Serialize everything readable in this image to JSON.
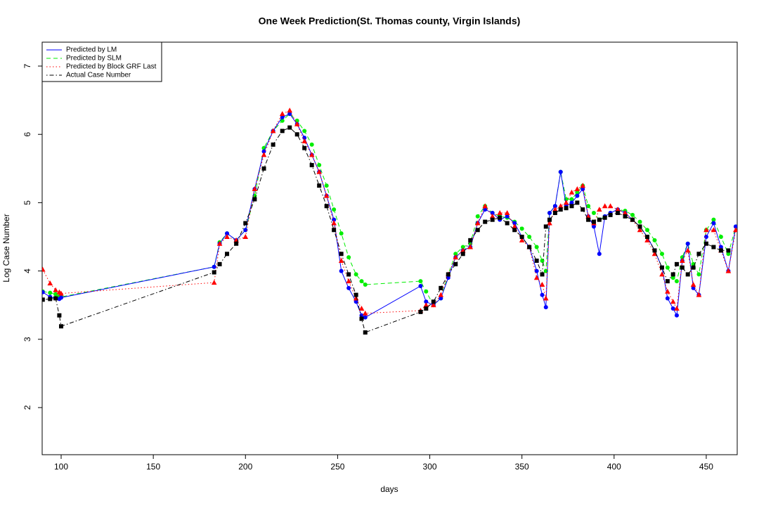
{
  "chart_data": {
    "type": "line",
    "title": "One Week Prediction(St. Thomas county, Virgin Islands)",
    "x_label": "days",
    "y_label": "Log Case Number",
    "xlim": [
      89.7,
      466.8
    ],
    "ylim": [
      1.31,
      7.35
    ],
    "xticks": [
      100,
      150,
      200,
      250,
      300,
      350,
      400,
      450
    ],
    "yticks": [
      2,
      3,
      4,
      5,
      6,
      7
    ],
    "legend": "top-left",
    "x": [
      90,
      94,
      97,
      99,
      100,
      183,
      186,
      190,
      195,
      200,
      205,
      210,
      215,
      220,
      224,
      228,
      232,
      236,
      240,
      244,
      248,
      252,
      256,
      260,
      263,
      265,
      295,
      298,
      302,
      306,
      310,
      314,
      318,
      322,
      326,
      330,
      334,
      338,
      342,
      346,
      350,
      354,
      358,
      361,
      363,
      365,
      368,
      371,
      374,
      377,
      380,
      383,
      386,
      389,
      392,
      395,
      398,
      402,
      406,
      410,
      414,
      418,
      422,
      426,
      429,
      432,
      434,
      437,
      440,
      443,
      446,
      450,
      454,
      458,
      462,
      466
    ],
    "series": [
      {
        "name": "Predicted by LM",
        "color": "#0000ff",
        "line_style": "solid",
        "marker": "circle",
        "values": [
          3.69,
          3.62,
          3.6,
          3.59,
          3.61,
          4.06,
          4.4,
          4.55,
          4.45,
          4.6,
          5.2,
          5.75,
          6.05,
          6.25,
          6.3,
          6.15,
          5.95,
          5.7,
          5.45,
          5.1,
          4.75,
          4.0,
          3.75,
          3.55,
          3.35,
          3.32,
          3.78,
          3.55,
          3.5,
          3.6,
          3.9,
          4.2,
          4.3,
          4.35,
          4.7,
          4.9,
          4.85,
          4.75,
          4.8,
          4.7,
          4.5,
          4.35,
          4.0,
          3.65,
          3.47,
          4.85,
          4.95,
          5.45,
          4.95,
          5.0,
          5.1,
          5.2,
          4.8,
          4.65,
          4.25,
          4.8,
          4.85,
          4.9,
          4.85,
          4.75,
          4.65,
          4.5,
          4.3,
          4.05,
          3.6,
          3.45,
          3.35,
          4.15,
          4.4,
          3.75,
          3.65,
          4.5,
          4.7,
          4.35,
          4.0,
          4.65
        ]
      },
      {
        "name": "Predicted by SLM",
        "color": "#00ee00",
        "line_style": "dashed",
        "marker": "circle",
        "values": [
          3.7,
          3.68,
          3.66,
          3.63,
          3.62,
          4.06,
          4.42,
          4.55,
          4.45,
          4.6,
          5.1,
          5.8,
          6.05,
          6.2,
          6.3,
          6.2,
          6.05,
          5.85,
          5.55,
          5.25,
          4.9,
          4.55,
          4.2,
          3.95,
          3.85,
          3.8,
          3.85,
          3.7,
          3.5,
          3.6,
          3.95,
          4.25,
          4.35,
          4.4,
          4.8,
          4.95,
          4.85,
          4.8,
          4.78,
          4.72,
          4.62,
          4.5,
          4.35,
          4.15,
          4.0,
          4.85,
          4.95,
          5.45,
          5.05,
          5.05,
          5.15,
          5.25,
          4.95,
          4.85,
          4.75,
          4.8,
          4.85,
          4.9,
          4.88,
          4.82,
          4.72,
          4.6,
          4.45,
          4.25,
          4.05,
          3.9,
          3.85,
          4.2,
          4.4,
          4.1,
          3.95,
          4.6,
          4.75,
          4.5,
          4.25,
          4.65
        ]
      },
      {
        "name": "Predicted by Block GRF Last",
        "color": "#ff0000",
        "line_style": "dotted",
        "marker": "triangle",
        "values": [
          4.02,
          3.82,
          3.72,
          3.69,
          3.67,
          3.83,
          4.4,
          4.5,
          4.45,
          4.5,
          5.2,
          5.7,
          6.05,
          6.3,
          6.35,
          6.15,
          5.9,
          5.7,
          5.45,
          5.1,
          4.7,
          4.15,
          3.85,
          3.6,
          3.45,
          3.38,
          3.42,
          3.5,
          3.5,
          3.65,
          3.95,
          4.2,
          4.3,
          4.35,
          4.7,
          4.95,
          4.8,
          4.85,
          4.85,
          4.65,
          4.45,
          4.35,
          3.9,
          3.8,
          3.6,
          4.7,
          4.9,
          4.95,
          5.0,
          5.15,
          5.2,
          5.25,
          4.8,
          4.7,
          4.9,
          4.95,
          4.95,
          4.9,
          4.85,
          4.75,
          4.6,
          4.45,
          4.25,
          3.95,
          3.7,
          3.55,
          3.45,
          4.15,
          4.3,
          3.8,
          3.65,
          4.6,
          4.6,
          4.3,
          4.0,
          4.6
        ]
      },
      {
        "name": "Actual Case Number",
        "color": "#000000",
        "line_style": "dotdash",
        "marker": "square",
        "values": [
          3.58,
          3.59,
          3.6,
          3.35,
          3.19,
          3.98,
          4.1,
          4.25,
          4.4,
          4.7,
          5.05,
          5.5,
          5.85,
          6.05,
          6.1,
          6.0,
          5.8,
          5.55,
          5.25,
          4.95,
          4.6,
          4.25,
          3.95,
          3.65,
          3.3,
          3.1,
          3.4,
          3.45,
          3.55,
          3.75,
          3.95,
          4.1,
          4.25,
          4.45,
          4.6,
          4.72,
          4.75,
          4.78,
          4.7,
          4.6,
          4.5,
          4.35,
          4.15,
          3.95,
          4.65,
          4.75,
          4.85,
          4.9,
          4.92,
          4.95,
          5.0,
          4.9,
          4.75,
          4.72,
          4.75,
          4.78,
          4.82,
          4.85,
          4.8,
          4.75,
          4.65,
          4.5,
          4.3,
          4.05,
          3.85,
          3.95,
          4.1,
          4.05,
          3.95,
          4.05,
          4.25,
          4.4,
          4.35,
          4.3,
          4.3,
          null
        ]
      }
    ]
  }
}
